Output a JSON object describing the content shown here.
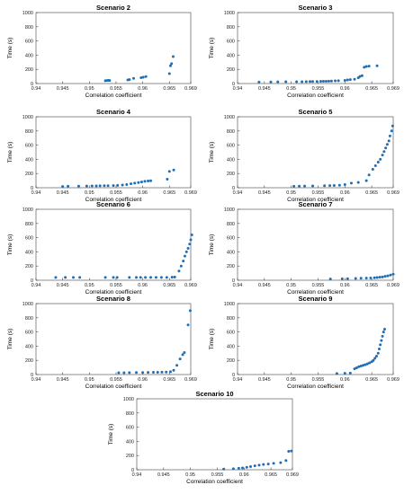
{
  "colors": {
    "marker": "#1f6fb5",
    "axis": "#444444",
    "background": "#ffffff"
  },
  "chart_data": [
    {
      "type": "scatter",
      "title": "Scenario 2",
      "xlabel": "Correlation coefficient",
      "ylabel": "Time (s)",
      "xlim": [
        0.94,
        0.969
      ],
      "ylim": [
        0,
        1000
      ],
      "xticks": [
        "0.94",
        "0.945",
        "0.95",
        "0.955",
        "0.96",
        "0.965",
        "0.969"
      ],
      "yticks": [
        "0",
        "200",
        "400",
        "600",
        "800",
        "1000"
      ],
      "grid": false,
      "points": [
        [
          0.953,
          40
        ],
        [
          0.9533,
          42
        ],
        [
          0.9536,
          45
        ],
        [
          0.9538,
          43
        ],
        [
          0.9572,
          50
        ],
        [
          0.9575,
          55
        ],
        [
          0.9583,
          72
        ],
        [
          0.9597,
          82
        ],
        [
          0.9601,
          88
        ],
        [
          0.9606,
          98
        ],
        [
          0.965,
          140
        ],
        [
          0.9652,
          250
        ],
        [
          0.9654,
          280
        ],
        [
          0.9657,
          380
        ]
      ]
    },
    {
      "type": "scatter",
      "title": "Scenario 3",
      "xlabel": "Correlation coefficient",
      "ylabel": "Time (s)",
      "xlim": [
        0.94,
        0.969
      ],
      "ylim": [
        0,
        1000
      ],
      "xticks": [
        "0.94",
        "0.945",
        "0.95",
        "0.955",
        "0.96",
        "0.965",
        "0.969"
      ],
      "yticks": [
        "0",
        "200",
        "400",
        "600",
        "800",
        "1000"
      ],
      "grid": false,
      "points": [
        [
          0.944,
          20
        ],
        [
          0.9462,
          22
        ],
        [
          0.9475,
          23
        ],
        [
          0.949,
          25
        ],
        [
          0.951,
          26
        ],
        [
          0.952,
          26
        ],
        [
          0.9528,
          27
        ],
        [
          0.9535,
          28
        ],
        [
          0.954,
          28
        ],
        [
          0.9548,
          29
        ],
        [
          0.9555,
          30
        ],
        [
          0.956,
          31
        ],
        [
          0.9565,
          32
        ],
        [
          0.957,
          33
        ],
        [
          0.9575,
          35
        ],
        [
          0.9582,
          38
        ],
        [
          0.9588,
          40
        ],
        [
          0.96,
          45
        ],
        [
          0.9605,
          50
        ],
        [
          0.961,
          55
        ],
        [
          0.9618,
          60
        ],
        [
          0.9625,
          80
        ],
        [
          0.9628,
          100
        ],
        [
          0.9632,
          110
        ],
        [
          0.9636,
          230
        ],
        [
          0.964,
          240
        ],
        [
          0.9645,
          245
        ],
        [
          0.966,
          250
        ]
      ]
    },
    {
      "type": "scatter",
      "title": "Scenario 4",
      "xlabel": "Correlation coefficient",
      "ylabel": "Time (s)",
      "xlim": [
        0.94,
        0.969
      ],
      "ylim": [
        0,
        1000
      ],
      "xticks": [
        "0.94",
        "0.945",
        "0.95",
        "0.955",
        "0.96",
        "0.965",
        "0.969"
      ],
      "yticks": [
        "0",
        "200",
        "400",
        "600",
        "800",
        "1000"
      ],
      "grid": false,
      "points": [
        [
          0.945,
          18
        ],
        [
          0.946,
          20
        ],
        [
          0.948,
          22
        ],
        [
          0.9495,
          24
        ],
        [
          0.9505,
          25
        ],
        [
          0.9513,
          26
        ],
        [
          0.952,
          27
        ],
        [
          0.9528,
          28
        ],
        [
          0.9535,
          29
        ],
        [
          0.9545,
          30
        ],
        [
          0.9553,
          34
        ],
        [
          0.9562,
          38
        ],
        [
          0.957,
          45
        ],
        [
          0.9578,
          55
        ],
        [
          0.9585,
          65
        ],
        [
          0.9592,
          72
        ],
        [
          0.9598,
          80
        ],
        [
          0.9604,
          90
        ],
        [
          0.961,
          95
        ],
        [
          0.9615,
          98
        ],
        [
          0.9646,
          120
        ],
        [
          0.965,
          230
        ],
        [
          0.9658,
          250
        ]
      ]
    },
    {
      "type": "scatter",
      "title": "Scenario 5",
      "xlabel": "Correlation coefficient",
      "ylabel": "Time (s)",
      "xlim": [
        0.94,
        0.969
      ],
      "ylim": [
        0,
        1000
      ],
      "xticks": [
        "0.94",
        "0.945",
        "0.95",
        "0.955",
        "0.96",
        "0.965",
        "0.969"
      ],
      "yticks": [
        "0",
        "200",
        "400",
        "600",
        "800",
        "1000"
      ],
      "grid": false,
      "points": [
        [
          0.9505,
          20
        ],
        [
          0.9515,
          22
        ],
        [
          0.9525,
          23
        ],
        [
          0.954,
          25
        ],
        [
          0.9562,
          28
        ],
        [
          0.9572,
          30
        ],
        [
          0.958,
          32
        ],
        [
          0.959,
          35
        ],
        [
          0.96,
          45
        ],
        [
          0.9612,
          65
        ],
        [
          0.9625,
          75
        ],
        [
          0.964,
          100
        ],
        [
          0.9645,
          180
        ],
        [
          0.9652,
          260
        ],
        [
          0.9657,
          310
        ],
        [
          0.9662,
          360
        ],
        [
          0.9666,
          400
        ],
        [
          0.967,
          460
        ],
        [
          0.9673,
          510
        ],
        [
          0.9676,
          560
        ],
        [
          0.9679,
          610
        ],
        [
          0.9682,
          660
        ],
        [
          0.9684,
          730
        ],
        [
          0.9687,
          800
        ],
        [
          0.9689,
          870
        ]
      ]
    },
    {
      "type": "scatter",
      "title": "Scenario 6",
      "xlabel": "Correlation coefficient",
      "ylabel": "Time (s)",
      "xlim": [
        0.94,
        0.969
      ],
      "ylim": [
        0,
        1000
      ],
      "xticks": [
        "0.94",
        "0.945",
        "0.95",
        "0.955",
        "0.96",
        "0.965",
        "0.969"
      ],
      "yticks": [
        "0",
        "200",
        "400",
        "600",
        "800",
        "1000"
      ],
      "grid": false,
      "points": [
        [
          0.9437,
          40
        ],
        [
          0.9455,
          40
        ],
        [
          0.947,
          40
        ],
        [
          0.9482,
          40
        ],
        [
          0.953,
          40
        ],
        [
          0.9545,
          40
        ],
        [
          0.9552,
          40
        ],
        [
          0.9575,
          40
        ],
        [
          0.9588,
          40
        ],
        [
          0.9596,
          40
        ],
        [
          0.9605,
          40
        ],
        [
          0.9615,
          40
        ],
        [
          0.9625,
          40
        ],
        [
          0.9635,
          40
        ],
        [
          0.9645,
          40
        ],
        [
          0.9655,
          42
        ],
        [
          0.966,
          45
        ],
        [
          0.9668,
          130
        ],
        [
          0.9672,
          200
        ],
        [
          0.9676,
          270
        ],
        [
          0.9679,
          340
        ],
        [
          0.9682,
          400
        ],
        [
          0.9685,
          450
        ],
        [
          0.9688,
          510
        ],
        [
          0.969,
          570
        ],
        [
          0.9692,
          640
        ]
      ]
    },
    {
      "type": "scatter",
      "title": "Scenario 7",
      "xlabel": "Correlation coefficient",
      "ylabel": "Time (s)",
      "xlim": [
        0.94,
        0.969
      ],
      "ylim": [
        0,
        1000
      ],
      "xticks": [
        "0.94",
        "0.945",
        "0.95",
        "0.955",
        "0.96",
        "0.965",
        "0.969"
      ],
      "yticks": [
        "0",
        "200",
        "400",
        "600",
        "800",
        "1000"
      ],
      "grid": false,
      "points": [
        [
          0.9573,
          18
        ],
        [
          0.9595,
          20
        ],
        [
          0.9605,
          22
        ],
        [
          0.962,
          25
        ],
        [
          0.963,
          28
        ],
        [
          0.964,
          30
        ],
        [
          0.9648,
          32
        ],
        [
          0.9655,
          35
        ],
        [
          0.966,
          38
        ],
        [
          0.9665,
          42
        ],
        [
          0.967,
          46
        ],
        [
          0.9675,
          55
        ],
        [
          0.968,
          62
        ],
        [
          0.9685,
          72
        ],
        [
          0.969,
          85
        ]
      ]
    },
    {
      "type": "scatter",
      "title": "Scenario 8",
      "xlabel": "Correlation coefficient",
      "ylabel": "Time (s)",
      "xlim": [
        0.94,
        0.969
      ],
      "ylim": [
        0,
        1000
      ],
      "xticks": [
        "0.94",
        "0.945",
        "0.95",
        "0.955",
        "0.96",
        "0.965",
        "0.969"
      ],
      "yticks": [
        "0",
        "200",
        "400",
        "600",
        "800",
        "1000"
      ],
      "grid": false,
      "points": [
        [
          0.9555,
          25
        ],
        [
          0.9565,
          26
        ],
        [
          0.9575,
          27
        ],
        [
          0.9588,
          28
        ],
        [
          0.96,
          29
        ],
        [
          0.961,
          30
        ],
        [
          0.962,
          31
        ],
        [
          0.9628,
          32
        ],
        [
          0.9636,
          33
        ],
        [
          0.9644,
          35
        ],
        [
          0.9652,
          40
        ],
        [
          0.9658,
          60
        ],
        [
          0.9664,
          130
        ],
        [
          0.967,
          220
        ],
        [
          0.9675,
          280
        ],
        [
          0.9678,
          310
        ],
        [
          0.9685,
          700
        ],
        [
          0.9689,
          900
        ]
      ]
    },
    {
      "type": "scatter",
      "title": "Scenario 9",
      "xlabel": "Correlation coefficient",
      "ylabel": "Time (s)",
      "xlim": [
        0.94,
        0.969
      ],
      "ylim": [
        0,
        1000
      ],
      "xticks": [
        "0.94",
        "0.945",
        "0.95",
        "0.955",
        "0.96",
        "0.965",
        "0.969"
      ],
      "yticks": [
        "0",
        "200",
        "400",
        "600",
        "800",
        "1000"
      ],
      "grid": false,
      "points": [
        [
          0.9585,
          15
        ],
        [
          0.96,
          18
        ],
        [
          0.961,
          20
        ],
        [
          0.9618,
          80
        ],
        [
          0.9622,
          95
        ],
        [
          0.9626,
          110
        ],
        [
          0.963,
          120
        ],
        [
          0.9634,
          130
        ],
        [
          0.9638,
          140
        ],
        [
          0.9642,
          150
        ],
        [
          0.9646,
          165
        ],
        [
          0.965,
          180
        ],
        [
          0.9653,
          200
        ],
        [
          0.9656,
          230
        ],
        [
          0.9659,
          260
        ],
        [
          0.9662,
          300
        ],
        [
          0.9664,
          360
        ],
        [
          0.9666,
          420
        ],
        [
          0.9668,
          480
        ],
        [
          0.967,
          540
        ],
        [
          0.9672,
          600
        ],
        [
          0.9674,
          640
        ]
      ]
    },
    {
      "type": "scatter",
      "title": "Scenario 10",
      "xlabel": "Correlation coefficient",
      "ylabel": "Time (s)",
      "xlim": [
        0.94,
        0.969
      ],
      "ylim": [
        0,
        1000
      ],
      "xticks": [
        "0.94",
        "0.945",
        "0.95",
        "0.955",
        "0.96",
        "0.965",
        "0.969"
      ],
      "yticks": [
        "0",
        "200",
        "400",
        "600",
        "800",
        "1000"
      ],
      "grid": false,
      "points": [
        [
          0.9562,
          10
        ],
        [
          0.958,
          15
        ],
        [
          0.959,
          20
        ],
        [
          0.9597,
          25
        ],
        [
          0.9605,
          35
        ],
        [
          0.9612,
          45
        ],
        [
          0.962,
          55
        ],
        [
          0.9628,
          65
        ],
        [
          0.9636,
          75
        ],
        [
          0.9645,
          80
        ],
        [
          0.9655,
          90
        ],
        [
          0.9668,
          100
        ],
        [
          0.9678,
          130
        ],
        [
          0.9683,
          260
        ],
        [
          0.9688,
          265
        ]
      ]
    }
  ]
}
